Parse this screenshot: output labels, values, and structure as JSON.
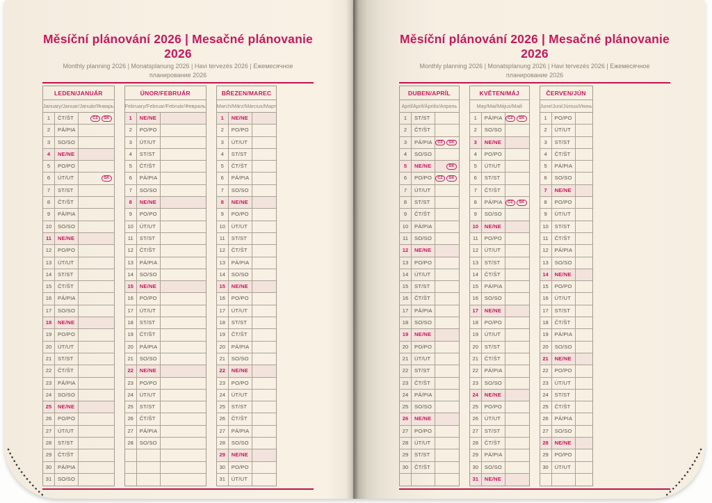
{
  "header": {
    "title": "Měsíční plánování 2026 | Mesačné plánovanie 2026",
    "subtitle": "Monthly planning 2026 | Monatsplanung 2026 | Havi tervezés 2026 | Ежемесячное планирование 2026"
  },
  "colors": {
    "accent": "#c9175c",
    "rule": "#c0124f",
    "day_text": "#57524a",
    "muted_text": "#8d8476",
    "border": "#a39b8d",
    "sunday_bg": "#f2e3dd",
    "page_bg": "#f7f0e3"
  },
  "months": [
    {
      "slug": "leden-januar",
      "name": "LEDEN/JANUÁR",
      "subtitle": "January/Januar/Január/Январь",
      "days": [
        "ČT/ŠT",
        "PÁ/PIA",
        "SO/SO",
        "NE/NE",
        "PO/PO",
        "ÚT/UT",
        "ST/ST",
        "ČT/ŠT",
        "PÁ/PIA",
        "SO/SO",
        "NE/NE",
        "PO/PO",
        "ÚT/UT",
        "ST/ST",
        "ČT/ŠT",
        "PÁ/PIA",
        "SO/SO",
        "NE/NE",
        "PO/PO",
        "ÚT/UT",
        "ST/ST",
        "ČT/ŠT",
        "PÁ/PIA",
        "SO/SO",
        "NE/NE",
        "PO/PO",
        "ÚT/UT",
        "ST/ST",
        "ČT/ŠT",
        "PÁ/PIA",
        "SO/SO"
      ],
      "sundays": [
        4,
        11,
        18,
        25
      ],
      "holidays": {
        "1": [
          "CZ",
          "SK"
        ],
        "6": [
          "SK"
        ]
      }
    },
    {
      "slug": "unor-februar",
      "name": "ÚNOR/FEBRUÁR",
      "subtitle": "February/Februar/Február/Февраль",
      "days": [
        "NE/NE",
        "PO/PO",
        "ÚT/UT",
        "ST/ST",
        "ČT/ŠT",
        "PÁ/PIA",
        "SO/SO",
        "NE/NE",
        "PO/PO",
        "ÚT/UT",
        "ST/ST",
        "ČT/ŠT",
        "PÁ/PIA",
        "SO/SO",
        "NE/NE",
        "PO/PO",
        "ÚT/UT",
        "ST/ST",
        "ČT/ŠT",
        "PÁ/PIA",
        "SO/SO",
        "NE/NE",
        "PO/PO",
        "ÚT/UT",
        "ST/ST",
        "ČT/ŠT",
        "PÁ/PIA",
        "SO/SO"
      ],
      "sundays": [
        1,
        8,
        15,
        22
      ],
      "holidays": {}
    },
    {
      "slug": "brezen-marec",
      "name": "BŘEZEN/MAREC",
      "subtitle": "March/März/Március/Март",
      "days": [
        "NE/NE",
        "PO/PO",
        "ÚT/UT",
        "ST/ST",
        "ČT/ŠT",
        "PÁ/PIA",
        "SO/SO",
        "NE/NE",
        "PO/PO",
        "ÚT/UT",
        "ST/ST",
        "ČT/ŠT",
        "PÁ/PIA",
        "SO/SO",
        "NE/NE",
        "PO/PO",
        "ÚT/UT",
        "ST/ST",
        "ČT/ŠT",
        "PÁ/PIA",
        "SO/SO",
        "NE/NE",
        "PO/PO",
        "ÚT/UT",
        "ST/ST",
        "ČT/ŠT",
        "PÁ/PIA",
        "SO/SO",
        "NE/NE",
        "PO/PO",
        "ÚT/UT"
      ],
      "sundays": [
        1,
        8,
        15,
        22,
        29
      ],
      "holidays": {}
    },
    {
      "slug": "duben-april",
      "name": "DUBEN/APRÍL",
      "subtitle": "April/April/Április/Апрель",
      "days": [
        "ST/ST",
        "ČT/ŠT",
        "PÁ/PIA",
        "SO/SO",
        "NE/NE",
        "PO/PO",
        "ÚT/UT",
        "ST/ST",
        "ČT/ŠT",
        "PÁ/PIA",
        "SO/SO",
        "NE/NE",
        "PO/PO",
        "ÚT/UT",
        "ST/ST",
        "ČT/ŠT",
        "PÁ/PIA",
        "SO/SO",
        "NE/NE",
        "PO/PO",
        "ÚT/UT",
        "ST/ST",
        "ČT/ŠT",
        "PÁ/PIA",
        "SO/SO",
        "NE/NE",
        "PO/PO",
        "ÚT/UT",
        "ST/ST",
        "ČT/ŠT"
      ],
      "sundays": [
        5,
        12,
        19,
        26
      ],
      "holidays": {
        "3": [
          "CZ",
          "SK"
        ],
        "5": [
          "SK"
        ],
        "6": [
          "CZ",
          "SK"
        ]
      }
    },
    {
      "slug": "kveten-maj",
      "name": "KVĚTEN/MÁJ",
      "subtitle": "May/Mai/Május/Май",
      "days": [
        "PÁ/PIA",
        "SO/SO",
        "NE/NE",
        "PO/PO",
        "ÚT/UT",
        "ST/ST",
        "ČT/ŠT",
        "PÁ/PIA",
        "SO/SO",
        "NE/NE",
        "PO/PO",
        "ÚT/UT",
        "ST/ST",
        "ČT/ŠT",
        "PÁ/PIA",
        "SO/SO",
        "NE/NE",
        "PO/PO",
        "ÚT/UT",
        "ST/ST",
        "ČT/ŠT",
        "PÁ/PIA",
        "SO/SO",
        "NE/NE",
        "PO/PO",
        "ÚT/UT",
        "ST/ST",
        "ČT/ŠT",
        "PÁ/PIA",
        "SO/SO",
        "NE/NE"
      ],
      "sundays": [
        3,
        10,
        17,
        24,
        31
      ],
      "holidays": {
        "1": [
          "CZ",
          "SK"
        ],
        "8": [
          "CZ",
          "SK"
        ]
      }
    },
    {
      "slug": "cerven-jun",
      "name": "ČERVEN/JÚN",
      "subtitle": "June/Juni/Június/Июнь",
      "days": [
        "PO/PO",
        "ÚT/UT",
        "ST/ST",
        "ČT/ŠT",
        "PÁ/PIA",
        "SO/SO",
        "NE/NE",
        "PO/PO",
        "ÚT/UT",
        "ST/ST",
        "ČT/ŠT",
        "PÁ/PIA",
        "SO/SO",
        "NE/NE",
        "PO/PO",
        "ÚT/UT",
        "ST/ST",
        "ČT/ŠT",
        "PÁ/PIA",
        "SO/SO",
        "NE/NE",
        "PO/PO",
        "ÚT/UT",
        "ST/ST",
        "ČT/ŠT",
        "PÁ/PIA",
        "SO/SO",
        "NE/NE",
        "PO/PO",
        "ÚT/UT"
      ],
      "sundays": [
        7,
        14,
        21,
        28
      ],
      "holidays": {}
    }
  ]
}
